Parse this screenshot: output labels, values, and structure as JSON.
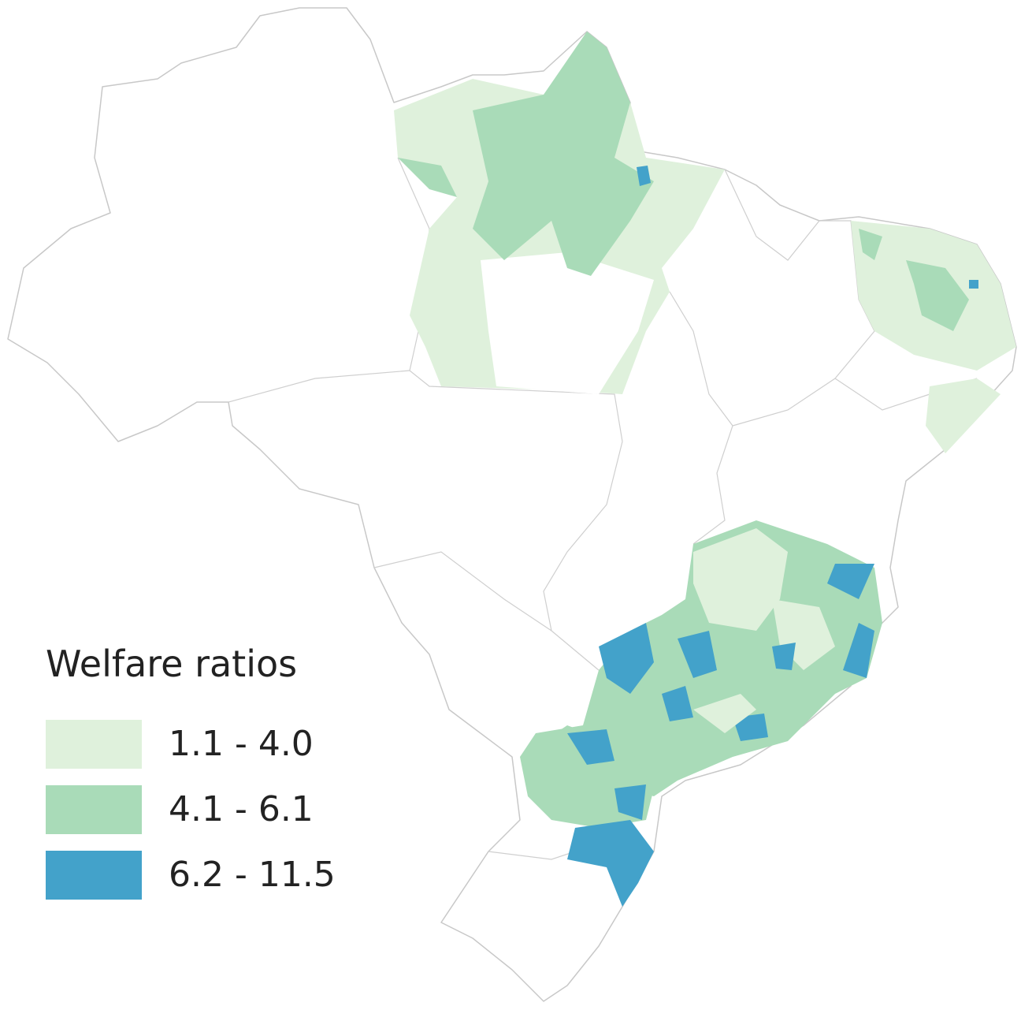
{
  "legend": {
    "title": "Welfare ratios",
    "items": [
      {
        "label": "1.1 - 4.0",
        "color": "#dff1dc"
      },
      {
        "label": "4.1 - 6.1",
        "color": "#a9dbb8"
      },
      {
        "label": "6.2 - 11.5",
        "color": "#43a2ca"
      }
    ]
  }
}
